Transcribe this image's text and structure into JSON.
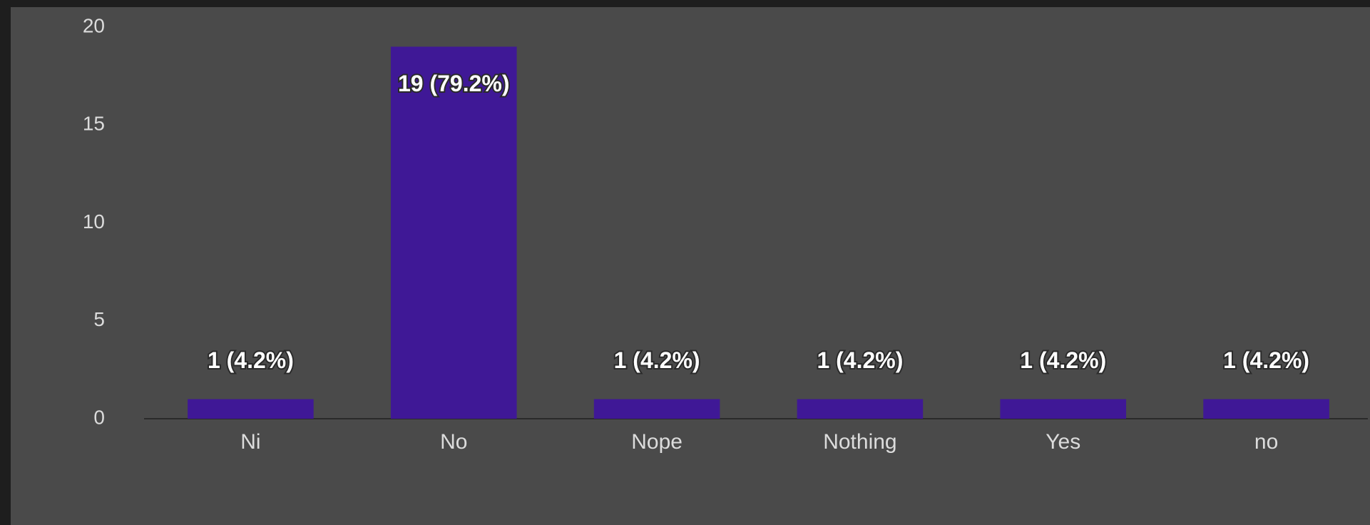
{
  "chart_data": {
    "type": "bar",
    "categories": [
      "Ni",
      "No",
      "Nope",
      "Nothing",
      "Yes",
      "no"
    ],
    "values": [
      1,
      19,
      1,
      1,
      1,
      1
    ],
    "value_labels": [
      "1 (4.2%)",
      "19 (79.2%)",
      "1 (4.2%)",
      "1 (4.2%)",
      "1 (4.2%)",
      "1 (4.2%)"
    ],
    "color": "#3f1896",
    "ylim": [
      0,
      20
    ],
    "yticks": [
      0,
      5,
      10,
      15,
      20
    ],
    "grid": false
  }
}
